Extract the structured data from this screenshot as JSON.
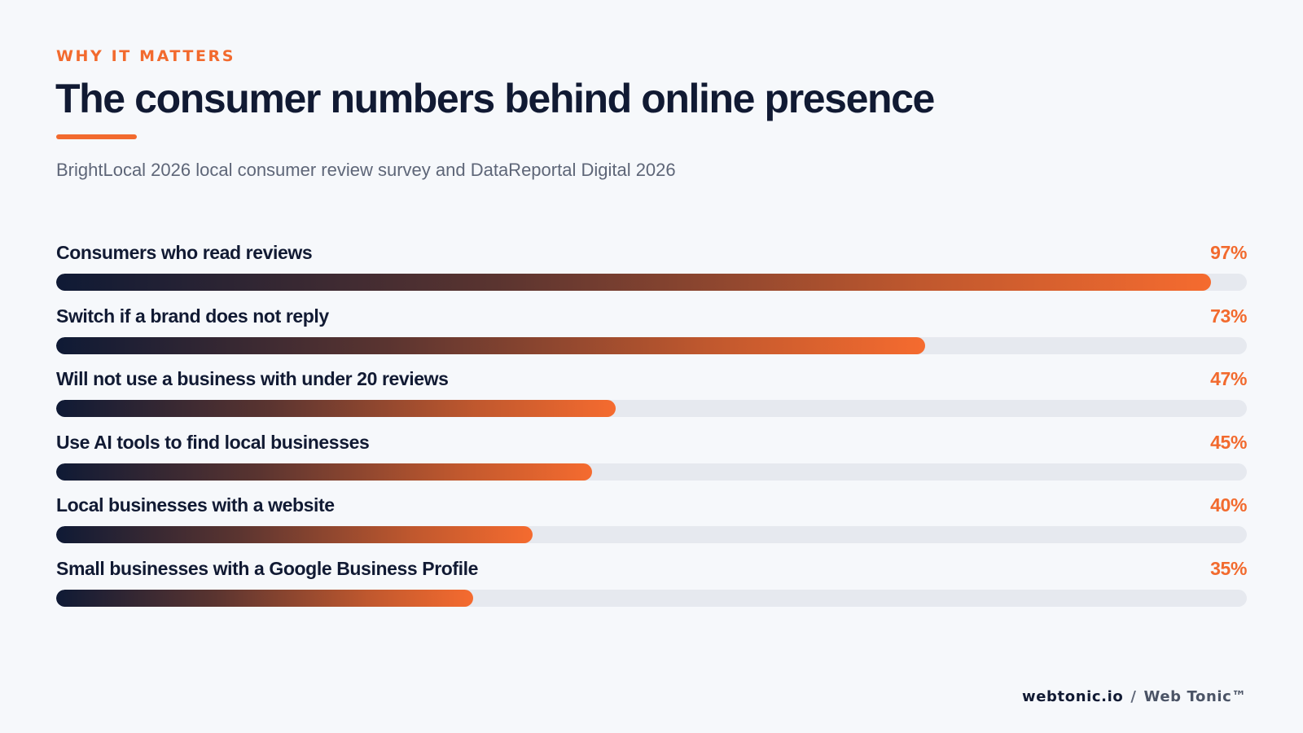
{
  "header": {
    "eyebrow": "WHY IT MATTERS",
    "title": "The consumer numbers behind online presence",
    "subtitle": "BrightLocal 2026 local consumer review survey and DataReportal Digital 2026"
  },
  "footer": {
    "domain": "webtonic.io",
    "separator": "/",
    "brand": "Web Tonic™"
  },
  "colors": {
    "accent": "#f26a2e",
    "navy": "#111a33",
    "track": "#e6e9ef",
    "background": "#f6f8fb"
  },
  "chart_data": {
    "type": "bar",
    "orientation": "horizontal",
    "unit": "%",
    "xlim": [
      0,
      100
    ],
    "categories": [
      "Consumers who read reviews",
      "Switch if a brand does not reply",
      "Will not use a business with under 20 reviews",
      "Use AI tools to find local businesses",
      "Local businesses with a website",
      "Small businesses with a Google Business Profile"
    ],
    "values": [
      97,
      73,
      47,
      45,
      40,
      35
    ],
    "value_labels": [
      "97%",
      "73%",
      "47%",
      "45%",
      "40%",
      "35%"
    ]
  }
}
